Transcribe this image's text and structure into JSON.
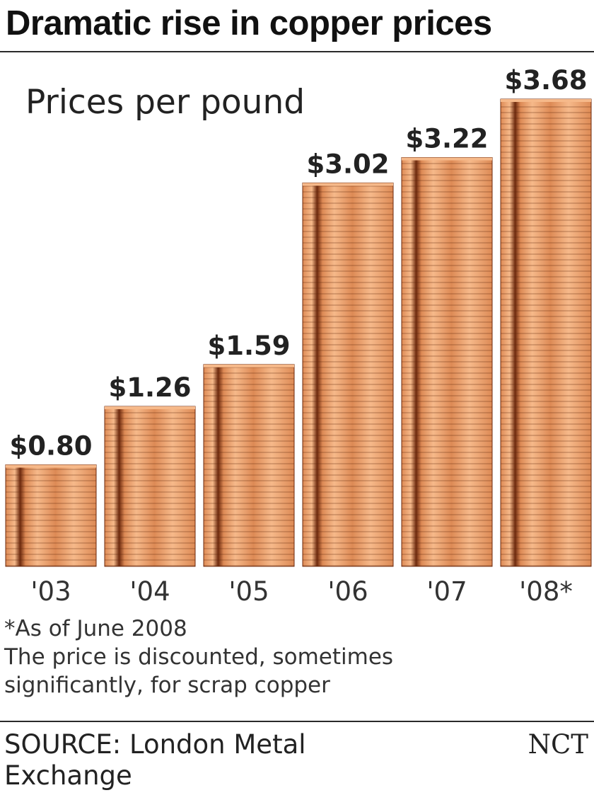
{
  "chart_data": {
    "type": "bar",
    "title": "Dramatic rise in copper prices",
    "subtitle": "Prices per pound",
    "categories": [
      "'03",
      "'04",
      "'05",
      "'06",
      "'07",
      "'08*"
    ],
    "values": [
      0.8,
      1.26,
      1.59,
      3.02,
      3.22,
      3.68
    ],
    "data_labels": [
      "$0.80",
      "$1.26",
      "$1.59",
      "$3.02",
      "$3.22",
      "$3.68"
    ],
    "ylim": [
      0,
      3.68
    ],
    "grid": false,
    "colors": {
      "copper_light": "#f6b98a",
      "copper_mid": "#dd8a55",
      "copper_dark": "#6e2a0e"
    }
  },
  "notes": {
    "footnote": "*As of June 2008",
    "line1": "The price is discounted, sometimes",
    "line2": "significantly, for scrap copper"
  },
  "source": {
    "text": "SOURCE: London Metal Exchange",
    "credit": "NCT"
  }
}
